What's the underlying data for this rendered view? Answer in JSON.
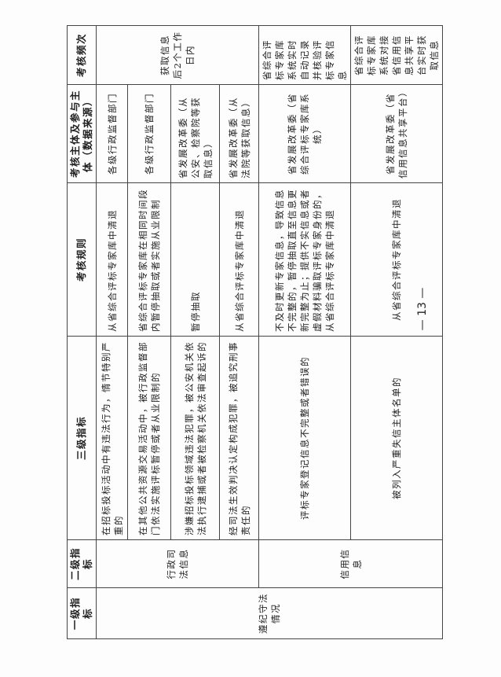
{
  "headers": [
    "一级指标",
    "二级指标",
    "三级指标",
    "考核规则",
    "考核主体及参与主体（数据来源）",
    "考核频次"
  ],
  "level1": "遵纪守法情况",
  "groups": [
    {
      "level2": "行政司法信息",
      "frequency": "获取信息后2个工作日内"
    },
    {
      "level2": "信用信息"
    }
  ],
  "rows": [
    {
      "level3": "在招标投标活动中有违法行为，情节特别严重的",
      "rule": "从省综合评标专家库中清退",
      "subject": "各级行政监督部门"
    },
    {
      "level3": "在其他公共资源交易活动中，被行政监督部门依法实施评标暂停或者从业限制的",
      "rule": "省综合评标专家库在相同时间段内暂停抽取或者实施从业限制",
      "subject": "各级行政监督部门"
    },
    {
      "level3": "涉嫌招标投标领域违法犯罪，被公安机关依法执行逮捕或者被检察机关依法审查起诉的",
      "rule": "暂停抽取",
      "subject": "省发展改革委（从公安、检察院等获取信息）"
    },
    {
      "level3": "经司法生效判决认定构成犯罪，被追究刑事责任的",
      "rule": "从省综合评标专家库中清退",
      "subject": "省发展改革委（从法院等获取信息）"
    },
    {
      "level3": "评标专家登记信息不完整或者错误的",
      "rule": "不及时更新专家信息，导致信息不完整的，暂停抽取直至信息更新完整为止；提供不实信息或者虚假材料骗取评标专家身份的，从省综合评标专家库中清退",
      "subject": "省发展改革委（省综合评标专家库系统）",
      "frequency": "省综合评标专家库系统实时自动记录并核验评标专家信息"
    },
    {
      "level3": "被列入严重失信主体名单的",
      "rule": "从省综合评标专家库中清退",
      "subject": "省发展改革委（省信用信息共享平台）",
      "frequency": "省综合评标专家库系统对接省信用信息共享平台实时获取信息"
    }
  ],
  "page_number": "— 13 —"
}
